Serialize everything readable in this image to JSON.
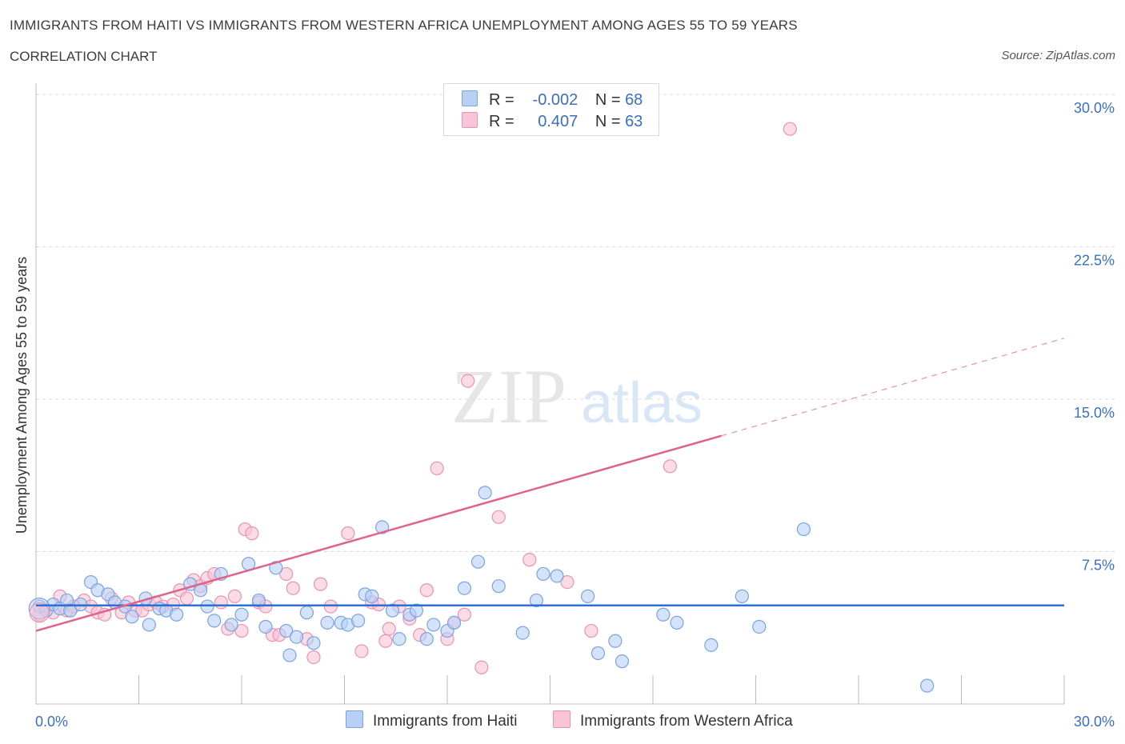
{
  "header": {
    "title": "IMMIGRANTS FROM HAITI VS IMMIGRANTS FROM WESTERN AFRICA UNEMPLOYMENT AMONG AGES 55 TO 59 YEARS",
    "subtitle": "CORRELATION CHART",
    "source": "Source: ZipAtlas.com"
  },
  "colors": {
    "haiti_fill": "#b8d0f5",
    "haiti_stroke": "#7aa3e0",
    "haiti_line": "#2e6fd0",
    "wafrica_fill": "#f9c5d6",
    "wafrica_stroke": "#ea92b1",
    "wafrica_line": "#e0628c",
    "axis_label": "#3a6fc4",
    "grid": "#d9d9d9"
  },
  "legend": {
    "r_label": "R =",
    "n_label": "N =",
    "haiti": {
      "r": "-0.002",
      "n": "68"
    },
    "wafrica": {
      "r": "0.407",
      "n": "63"
    }
  },
  "watermark": {
    "zip": "ZIP",
    "atlas": "atlas"
  },
  "chart_data": {
    "type": "scatter",
    "title": "IMMIGRANTS FROM HAITI VS IMMIGRANTS FROM WESTERN AFRICA UNEMPLOYMENT AMONG AGES 55 TO 59 YEARS",
    "xlabel": "",
    "ylabel": "Unemployment Among Ages 55 to 59 years",
    "xlim": [
      0,
      30
    ],
    "ylim": [
      0,
      30
    ],
    "x_tick_labels": [
      {
        "value": 0,
        "label": "0.0%"
      },
      {
        "value": 30,
        "label": "30.0%"
      }
    ],
    "y_tick_labels": [
      {
        "value": 7.5,
        "label": "7.5%"
      },
      {
        "value": 15,
        "label": "15.0%"
      },
      {
        "value": 22.5,
        "label": "22.5%"
      },
      {
        "value": 30,
        "label": "30.0%"
      }
    ],
    "grid": true,
    "legend_position": "bottom",
    "series": [
      {
        "name": "Immigrants from Haiti",
        "color": "#7aa3e0",
        "trend": {
          "x": [
            0,
            30
          ],
          "y": [
            4.85,
            4.85
          ],
          "dashed_from": null
        },
        "points": [
          [
            0.1,
            4.8
          ],
          [
            0.3,
            4.6
          ],
          [
            0.5,
            4.9
          ],
          [
            0.7,
            4.7
          ],
          [
            0.9,
            5.1
          ],
          [
            1.0,
            4.6
          ],
          [
            1.3,
            4.9
          ],
          [
            1.6,
            6.0
          ],
          [
            1.8,
            5.6
          ],
          [
            2.1,
            5.4
          ],
          [
            2.3,
            5.0
          ],
          [
            2.6,
            4.8
          ],
          [
            2.8,
            4.3
          ],
          [
            3.2,
            5.2
          ],
          [
            3.3,
            3.9
          ],
          [
            3.6,
            4.7
          ],
          [
            3.8,
            4.6
          ],
          [
            4.1,
            4.4
          ],
          [
            4.5,
            5.9
          ],
          [
            4.8,
            5.6
          ],
          [
            5.0,
            4.8
          ],
          [
            5.2,
            4.1
          ],
          [
            5.4,
            6.4
          ],
          [
            5.7,
            3.9
          ],
          [
            6.0,
            4.4
          ],
          [
            6.2,
            6.9
          ],
          [
            6.5,
            5.1
          ],
          [
            6.7,
            3.8
          ],
          [
            7.0,
            6.7
          ],
          [
            7.3,
            3.6
          ],
          [
            7.4,
            2.4
          ],
          [
            7.6,
            3.3
          ],
          [
            7.9,
            4.5
          ],
          [
            8.1,
            3.0
          ],
          [
            8.5,
            4.0
          ],
          [
            8.9,
            4.0
          ],
          [
            9.1,
            3.9
          ],
          [
            9.4,
            4.1
          ],
          [
            9.6,
            5.4
          ],
          [
            9.8,
            5.3
          ],
          [
            10.1,
            8.7
          ],
          [
            10.4,
            4.6
          ],
          [
            10.6,
            3.2
          ],
          [
            10.9,
            4.4
          ],
          [
            11.1,
            4.6
          ],
          [
            11.4,
            3.2
          ],
          [
            11.6,
            3.9
          ],
          [
            12.0,
            3.6
          ],
          [
            12.2,
            4.0
          ],
          [
            12.5,
            5.7
          ],
          [
            12.9,
            7.0
          ],
          [
            13.1,
            10.4
          ],
          [
            13.5,
            5.8
          ],
          [
            14.2,
            3.5
          ],
          [
            14.6,
            5.1
          ],
          [
            14.8,
            6.4
          ],
          [
            15.2,
            6.3
          ],
          [
            16.1,
            5.3
          ],
          [
            16.4,
            2.5
          ],
          [
            16.9,
            3.1
          ],
          [
            17.1,
            2.1
          ],
          [
            18.3,
            4.4
          ],
          [
            18.7,
            4.0
          ],
          [
            19.7,
            2.9
          ],
          [
            20.6,
            5.3
          ],
          [
            21.1,
            3.8
          ],
          [
            22.4,
            8.6
          ],
          [
            26.0,
            0.9
          ]
        ]
      },
      {
        "name": "Immigrants from Western Africa",
        "color": "#ea92b1",
        "trend": {
          "x": [
            0,
            30
          ],
          "y": [
            3.6,
            18.0
          ],
          "dashed_from": 20
        },
        "points": [
          [
            0.1,
            4.4
          ],
          [
            0.3,
            4.6
          ],
          [
            0.5,
            4.5
          ],
          [
            0.7,
            5.3
          ],
          [
            0.9,
            4.6
          ],
          [
            1.1,
            4.8
          ],
          [
            1.4,
            5.1
          ],
          [
            1.6,
            4.8
          ],
          [
            1.8,
            4.5
          ],
          [
            2.0,
            4.4
          ],
          [
            2.2,
            5.2
          ],
          [
            2.5,
            4.5
          ],
          [
            2.7,
            5.0
          ],
          [
            2.9,
            4.6
          ],
          [
            3.1,
            4.6
          ],
          [
            3.3,
            4.9
          ],
          [
            3.5,
            5.0
          ],
          [
            3.7,
            4.8
          ],
          [
            4.0,
            4.9
          ],
          [
            4.2,
            5.6
          ],
          [
            4.4,
            5.2
          ],
          [
            4.6,
            6.1
          ],
          [
            4.8,
            5.8
          ],
          [
            5.0,
            6.2
          ],
          [
            5.2,
            6.4
          ],
          [
            5.4,
            5.0
          ],
          [
            5.6,
            3.7
          ],
          [
            5.8,
            5.3
          ],
          [
            6.0,
            3.6
          ],
          [
            6.1,
            8.6
          ],
          [
            6.3,
            8.4
          ],
          [
            6.5,
            5.0
          ],
          [
            6.7,
            4.8
          ],
          [
            6.9,
            3.4
          ],
          [
            7.1,
            3.4
          ],
          [
            7.3,
            6.4
          ],
          [
            7.5,
            5.7
          ],
          [
            7.9,
            3.2
          ],
          [
            8.1,
            2.3
          ],
          [
            8.3,
            5.9
          ],
          [
            8.6,
            4.8
          ],
          [
            9.1,
            8.4
          ],
          [
            9.5,
            2.6
          ],
          [
            9.8,
            5.0
          ],
          [
            10.0,
            4.9
          ],
          [
            10.2,
            3.1
          ],
          [
            10.3,
            3.7
          ],
          [
            10.6,
            4.8
          ],
          [
            10.9,
            4.2
          ],
          [
            11.2,
            3.4
          ],
          [
            11.4,
            5.6
          ],
          [
            11.7,
            11.6
          ],
          [
            12.0,
            3.2
          ],
          [
            12.2,
            4.0
          ],
          [
            12.5,
            4.4
          ],
          [
            13.0,
            1.8
          ],
          [
            13.5,
            9.2
          ],
          [
            14.4,
            7.1
          ],
          [
            15.5,
            6.0
          ],
          [
            16.2,
            3.6
          ],
          [
            18.5,
            11.7
          ],
          [
            12.6,
            15.9
          ],
          [
            22.0,
            28.3
          ]
        ]
      }
    ]
  },
  "axis_labels": {
    "x_min": "0.0%",
    "x_max": "30.0%",
    "y_title": "Unemployment Among Ages 55 to 59 years"
  },
  "bottom_legend": {
    "haiti": "Immigrants from Haiti",
    "wafrica": "Immigrants from Western Africa"
  }
}
